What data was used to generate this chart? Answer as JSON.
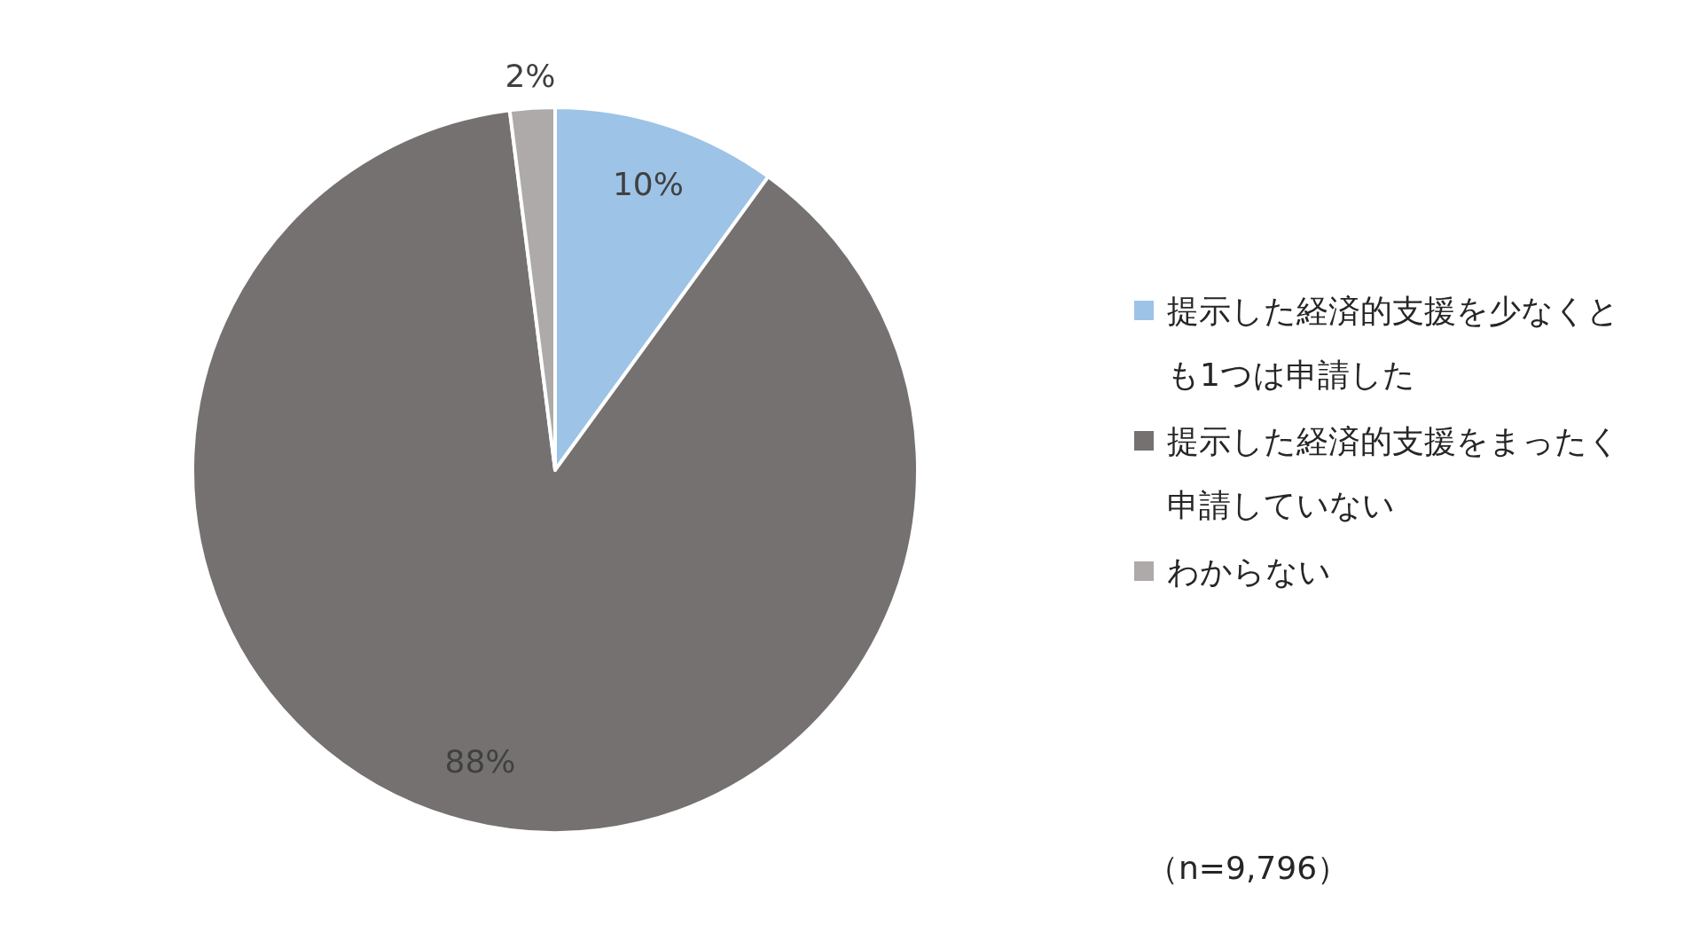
{
  "chart_data": {
    "type": "pie",
    "categories": [
      "提示した経済的支援を少なくとも1つは申請した",
      "提示した経済的支援をまったく申請していない",
      "わからない"
    ],
    "values": [
      10,
      88,
      2
    ],
    "colors": [
      "#9dc3e6",
      "#767171",
      "#aeaaaa"
    ],
    "value_labels": [
      "10%",
      "88%",
      "2%"
    ],
    "legend": "right",
    "annotations": [
      "（n=9,796）"
    ]
  }
}
